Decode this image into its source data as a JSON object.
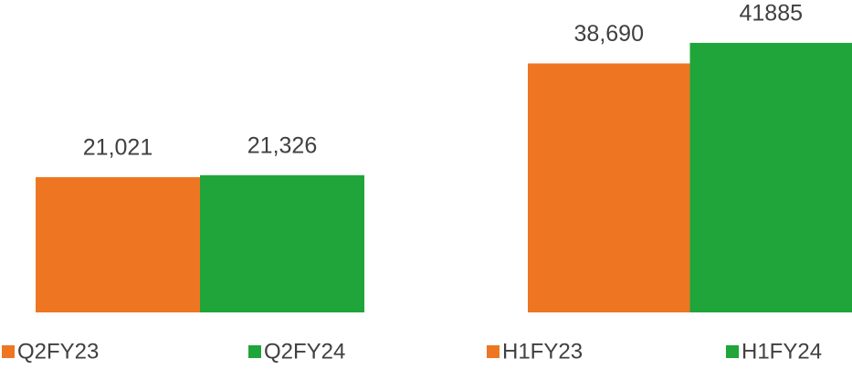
{
  "chart_data": [
    {
      "type": "bar",
      "ylim": [
        0,
        45000
      ],
      "series": [
        {
          "name": "Q2FY23",
          "color": "#ee7623",
          "values": [
            21021
          ],
          "value_labels": [
            "21,021"
          ]
        },
        {
          "name": "Q2FY24",
          "color": "#1fa53a",
          "values": [
            21326
          ],
          "value_labels": [
            "21,326"
          ]
        }
      ]
    },
    {
      "type": "bar",
      "ylim": [
        0,
        45000
      ],
      "series": [
        {
          "name": "H1FY23",
          "color": "#ee7623",
          "values": [
            38690
          ],
          "value_labels": [
            "38,690"
          ]
        },
        {
          "name": "H1FY24",
          "color": "#1fa53a",
          "values": [
            41885
          ],
          "value_labels": [
            "41885"
          ]
        }
      ]
    }
  ]
}
